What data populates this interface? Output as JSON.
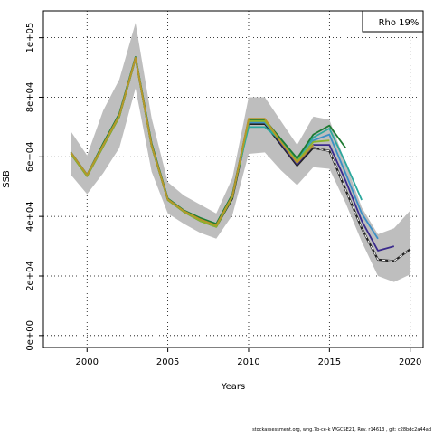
{
  "footer": "stockassessment.org, whg.7b-ce-k WGCSE21, Rev. r14613 , git: c28bdc2a44ad",
  "chart_data": {
    "type": "line",
    "xlabel": "Years",
    "ylabel": "SSB",
    "legend_text": "Rho 19%",
    "legend_placement": "top-right",
    "grid": true,
    "xlim": [
      1997.3,
      2020.8
    ],
    "ylim": [
      -4000,
      109000
    ],
    "x_ticks": [
      2000,
      2005,
      2010,
      2015,
      2020
    ],
    "x_tick_labels": [
      "2000",
      "2005",
      "2010",
      "2015",
      "2020"
    ],
    "y_ticks": [
      0,
      20000,
      40000,
      60000,
      80000,
      100000
    ],
    "y_tick_labels": [
      "0e+00",
      "2e+04",
      "4e+04",
      "6e+04",
      "8e+04",
      "1e+05"
    ],
    "band": {
      "color": "#bebebe",
      "x": [
        1999,
        2000,
        2001,
        2002,
        2003,
        2004,
        2005,
        2006,
        2007,
        2008,
        2009,
        2010,
        2011,
        2012,
        2013,
        2014,
        2015,
        2016,
        2017,
        2018,
        2019,
        2020
      ],
      "upper": [
        68500,
        60500,
        75500,
        86000,
        105000,
        73000,
        51500,
        47000,
        44000,
        41000,
        53000,
        80000,
        80000,
        72000,
        64000,
        73500,
        72500,
        58000,
        43000,
        34000,
        36000,
        42000
      ],
      "lower": [
        54000,
        47500,
        54500,
        63000,
        83000,
        55000,
        41000,
        37500,
        34500,
        32500,
        40500,
        61000,
        61500,
        55500,
        50500,
        56500,
        56000,
        44500,
        31500,
        20000,
        18000,
        20500
      ]
    },
    "series": [
      {
        "color": "#222222",
        "dash": false,
        "x": [
          1999,
          2000,
          2001,
          2002,
          2003,
          2004,
          2005,
          2006,
          2007,
          2008,
          2009,
          2010,
          2011,
          2012,
          2013,
          2014,
          2015,
          2016,
          2017,
          2018,
          2019,
          2020
        ],
        "values": [
          61000,
          53500,
          63500,
          73500,
          93000,
          63500,
          45500,
          41500,
          38500,
          36500,
          46000,
          71000,
          71000,
          64000,
          57000,
          63000,
          62000,
          49000,
          36000,
          25500,
          25000,
          29000
        ]
      },
      {
        "color": "#3a2a8c",
        "dash": false,
        "x": [
          1999,
          2000,
          2001,
          2002,
          2003,
          2004,
          2005,
          2006,
          2007,
          2008,
          2009,
          2010,
          2011,
          2012,
          2013,
          2014,
          2015,
          2016,
          2017,
          2018,
          2019
        ],
        "values": [
          61500,
          54000,
          64000,
          74000,
          93300,
          64000,
          45800,
          41800,
          39000,
          37000,
          46800,
          72000,
          72000,
          64500,
          57500,
          64000,
          64000,
          52000,
          38500,
          28500,
          30000
        ]
      },
      {
        "color": "#3b8fc6",
        "dash": false,
        "x": [
          1999,
          2000,
          2001,
          2002,
          2003,
          2004,
          2005,
          2006,
          2007,
          2008,
          2009,
          2010,
          2011,
          2012,
          2013,
          2014,
          2015,
          2016,
          2017,
          2018
        ],
        "values": [
          61500,
          54000,
          64000,
          74000,
          93300,
          64000,
          45800,
          41800,
          39000,
          37000,
          47000,
          71500,
          71500,
          65000,
          58000,
          65500,
          67500,
          54500,
          41000,
          32500
        ]
      },
      {
        "color": "#2ca89e",
        "dash": false,
        "x": [
          1999,
          2000,
          2001,
          2002,
          2003,
          2004,
          2005,
          2006,
          2007,
          2008,
          2009,
          2010,
          2011,
          2012,
          2013,
          2014,
          2015,
          2016,
          2017
        ],
        "values": [
          61500,
          54000,
          64500,
          74500,
          93500,
          64500,
          46000,
          42000,
          39500,
          37500,
          47500,
          70000,
          70000,
          65500,
          59000,
          66500,
          69500,
          58000,
          45500
        ]
      },
      {
        "color": "#1e7a32",
        "dash": false,
        "x": [
          1999,
          2000,
          2001,
          2002,
          2003,
          2004,
          2005,
          2006,
          2007,
          2008,
          2009,
          2010,
          2011,
          2012,
          2013,
          2014,
          2015,
          2016
        ],
        "values": [
          61500,
          54000,
          64500,
          74500,
          93500,
          64500,
          46000,
          42000,
          39500,
          37500,
          47500,
          72500,
          72500,
          66000,
          59500,
          67500,
          70500,
          63000
        ]
      },
      {
        "color": "#8bb52c",
        "dash": false,
        "x": [
          1999,
          2000,
          2001,
          2002,
          2003,
          2004,
          2005,
          2006,
          2007,
          2008,
          2009,
          2010,
          2011,
          2012,
          2013,
          2014,
          2015
        ],
        "values": [
          61000,
          53500,
          63500,
          73500,
          93000,
          63500,
          45500,
          41500,
          38500,
          36500,
          46500,
          72000,
          72000,
          65000,
          58500,
          65000,
          65500
        ]
      },
      {
        "color": "#b8952b",
        "dash": false,
        "x": [
          1999,
          2000,
          2001,
          2002,
          2003,
          2004,
          2005,
          2006,
          2007,
          2008,
          2009,
          2010,
          2011,
          2012,
          2013,
          2014
        ],
        "values": [
          61500,
          54000,
          64000,
          74000,
          93300,
          64000,
          45800,
          41800,
          39000,
          37000,
          47000,
          72800,
          72800,
          65000,
          58000,
          64000
        ]
      },
      {
        "color": "#222222",
        "dash": true,
        "x": [
          2014,
          2015,
          2016,
          2017,
          2018,
          2019,
          2020
        ],
        "values": [
          63000,
          62000,
          49000,
          36000,
          25500,
          25000,
          29000
        ]
      }
    ]
  }
}
